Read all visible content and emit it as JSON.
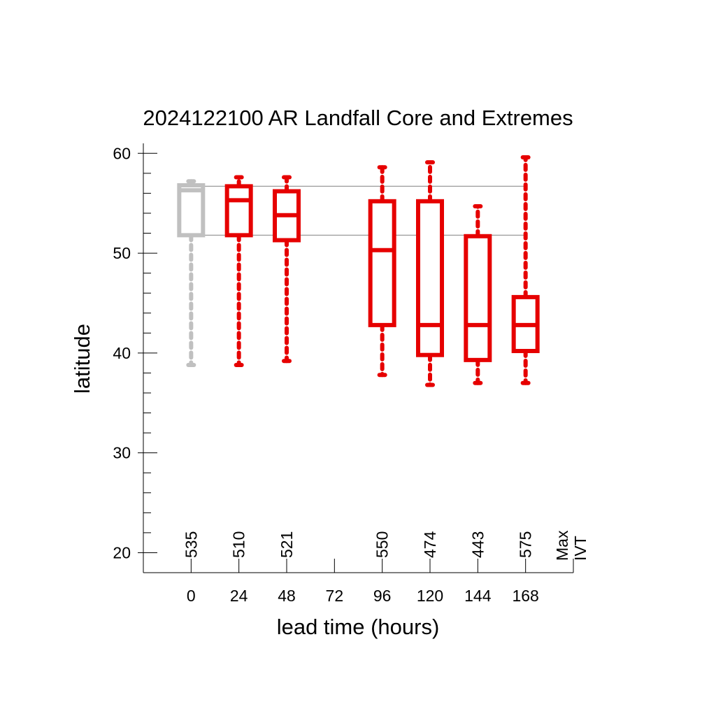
{
  "chart_data": {
    "type": "box",
    "title": "2024122100 AR Landfall Core and Extremes",
    "xlabel": "lead time (hours)",
    "ylabel": "latitude",
    "x_ticks": [
      0,
      24,
      48,
      72,
      96,
      120,
      144,
      168
    ],
    "x_tick_labels": [
      "0",
      "24",
      "48",
      "72",
      "96",
      "120",
      "144",
      "168"
    ],
    "xlim": [
      -24,
      192
    ],
    "ylim": [
      18,
      61
    ],
    "y_ticks": [
      20,
      30,
      40,
      50,
      60
    ],
    "y_tick_labels": [
      "20",
      "30",
      "40",
      "50",
      "60"
    ],
    "y_minor_step": 2,
    "reference_lines": [
      56.7,
      51.8
    ],
    "reference_line_color": "#999999",
    "right_label": [
      "Max",
      "IVT"
    ],
    "boxes": [
      {
        "x": 0,
        "min": 38.8,
        "q1": 51.8,
        "median": 56.3,
        "q3": 56.8,
        "max": 57.2,
        "count": "535",
        "color": "#c0c0c0"
      },
      {
        "x": 24,
        "min": 38.8,
        "q1": 51.8,
        "median": 55.3,
        "q3": 56.7,
        "max": 57.6,
        "count": "510",
        "color": "#e60000"
      },
      {
        "x": 48,
        "min": 39.2,
        "q1": 51.3,
        "median": 53.8,
        "q3": 56.2,
        "max": 57.6,
        "count": "521",
        "color": "#e60000"
      },
      {
        "x": 96,
        "min": 37.8,
        "q1": 42.8,
        "median": 50.3,
        "q3": 55.2,
        "max": 58.6,
        "count": "550",
        "color": "#e60000"
      },
      {
        "x": 120,
        "min": 36.8,
        "q1": 39.8,
        "median": 42.8,
        "q3": 55.2,
        "max": 59.1,
        "count": "474",
        "color": "#e60000"
      },
      {
        "x": 144,
        "min": 37.0,
        "q1": 39.3,
        "median": 42.8,
        "q3": 51.7,
        "max": 54.7,
        "count": "443",
        "color": "#e60000"
      },
      {
        "x": 168,
        "min": 37.0,
        "q1": 40.2,
        "median": 42.8,
        "q3": 45.6,
        "max": 59.6,
        "count": "575",
        "color": "#e60000"
      }
    ]
  }
}
